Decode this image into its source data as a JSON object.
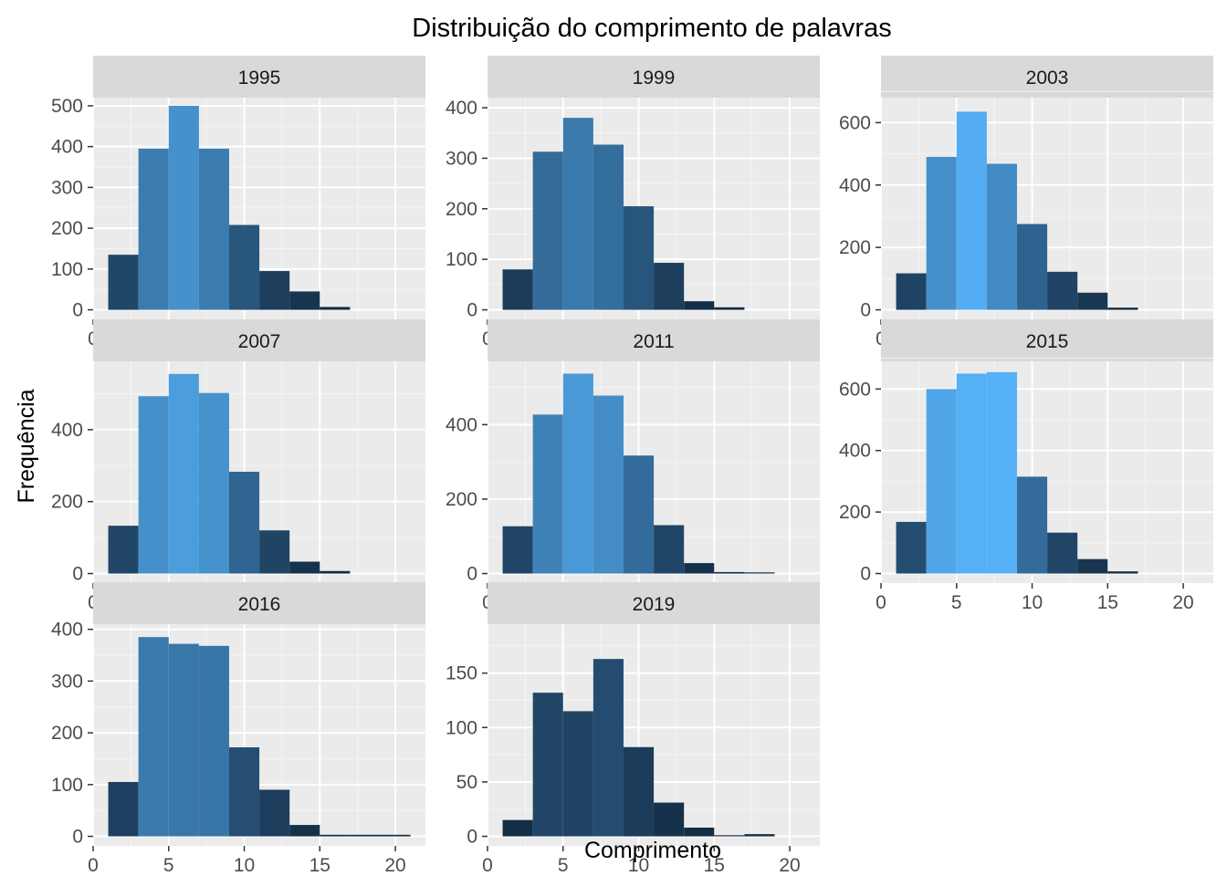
{
  "chart_data": {
    "type": "bar",
    "title": "Distribuição do comprimento de palavras",
    "xlabel": "Comprimento",
    "ylabel": "Frequência",
    "xlim": [
      0,
      21
    ],
    "x_ticks": [
      0,
      5,
      10,
      15,
      20
    ],
    "bin_width": 2,
    "bin_centers": [
      2,
      4,
      6,
      8,
      10,
      12,
      14,
      16,
      18,
      20
    ],
    "grid": true,
    "legend": "none",
    "fill_scale": {
      "low": "#132B43",
      "high": "#56B1F7"
    },
    "panels": [
      {
        "label": "1995",
        "ylim": [
          0,
          520
        ],
        "y_ticks": [
          0,
          100,
          200,
          300,
          400,
          500
        ],
        "values": [
          135,
          395,
          500,
          395,
          208,
          95,
          45,
          7,
          0,
          0
        ]
      },
      {
        "label": "1999",
        "ylim": [
          0,
          420
        ],
        "y_ticks": [
          0,
          100,
          200,
          300,
          400
        ],
        "values": [
          80,
          313,
          380,
          327,
          205,
          93,
          17,
          5,
          0,
          0
        ]
      },
      {
        "label": "2003",
        "ylim": [
          0,
          680
        ],
        "y_ticks": [
          0,
          200,
          400,
          600
        ],
        "values": [
          117,
          490,
          635,
          468,
          275,
          122,
          55,
          7,
          0,
          0
        ]
      },
      {
        "label": "2007",
        "ylim": [
          0,
          590
        ],
        "y_ticks": [
          0,
          200,
          400
        ],
        "values": [
          133,
          493,
          555,
          502,
          283,
          120,
          33,
          7,
          0,
          0
        ]
      },
      {
        "label": "2011",
        "ylim": [
          0,
          570
        ],
        "y_ticks": [
          0,
          200,
          400
        ],
        "values": [
          127,
          427,
          537,
          478,
          317,
          130,
          28,
          4,
          3,
          0
        ]
      },
      {
        "label": "2015",
        "ylim": [
          0,
          690
        ],
        "y_ticks": [
          0,
          200,
          400,
          600
        ],
        "values": [
          168,
          600,
          650,
          655,
          315,
          133,
          47,
          7,
          0,
          0
        ]
      },
      {
        "label": "2016",
        "ylim": [
          0,
          410
        ],
        "y_ticks": [
          0,
          100,
          200,
          300,
          400
        ],
        "values": [
          105,
          385,
          372,
          368,
          172,
          90,
          22,
          3,
          3,
          3
        ]
      },
      {
        "label": "2019",
        "ylim": [
          0,
          195
        ],
        "y_ticks": [
          0,
          50,
          100,
          150
        ],
        "values": [
          15,
          132,
          115,
          163,
          82,
          31,
          8,
          1,
          2,
          0
        ]
      }
    ]
  },
  "colors": {
    "panel_background": "#EBEBEB",
    "strip_background": "#D9D9D9",
    "grid_major": "#FFFFFF",
    "grid_minor": "#F5F5F5",
    "tick_text": "#4D4D4D"
  }
}
